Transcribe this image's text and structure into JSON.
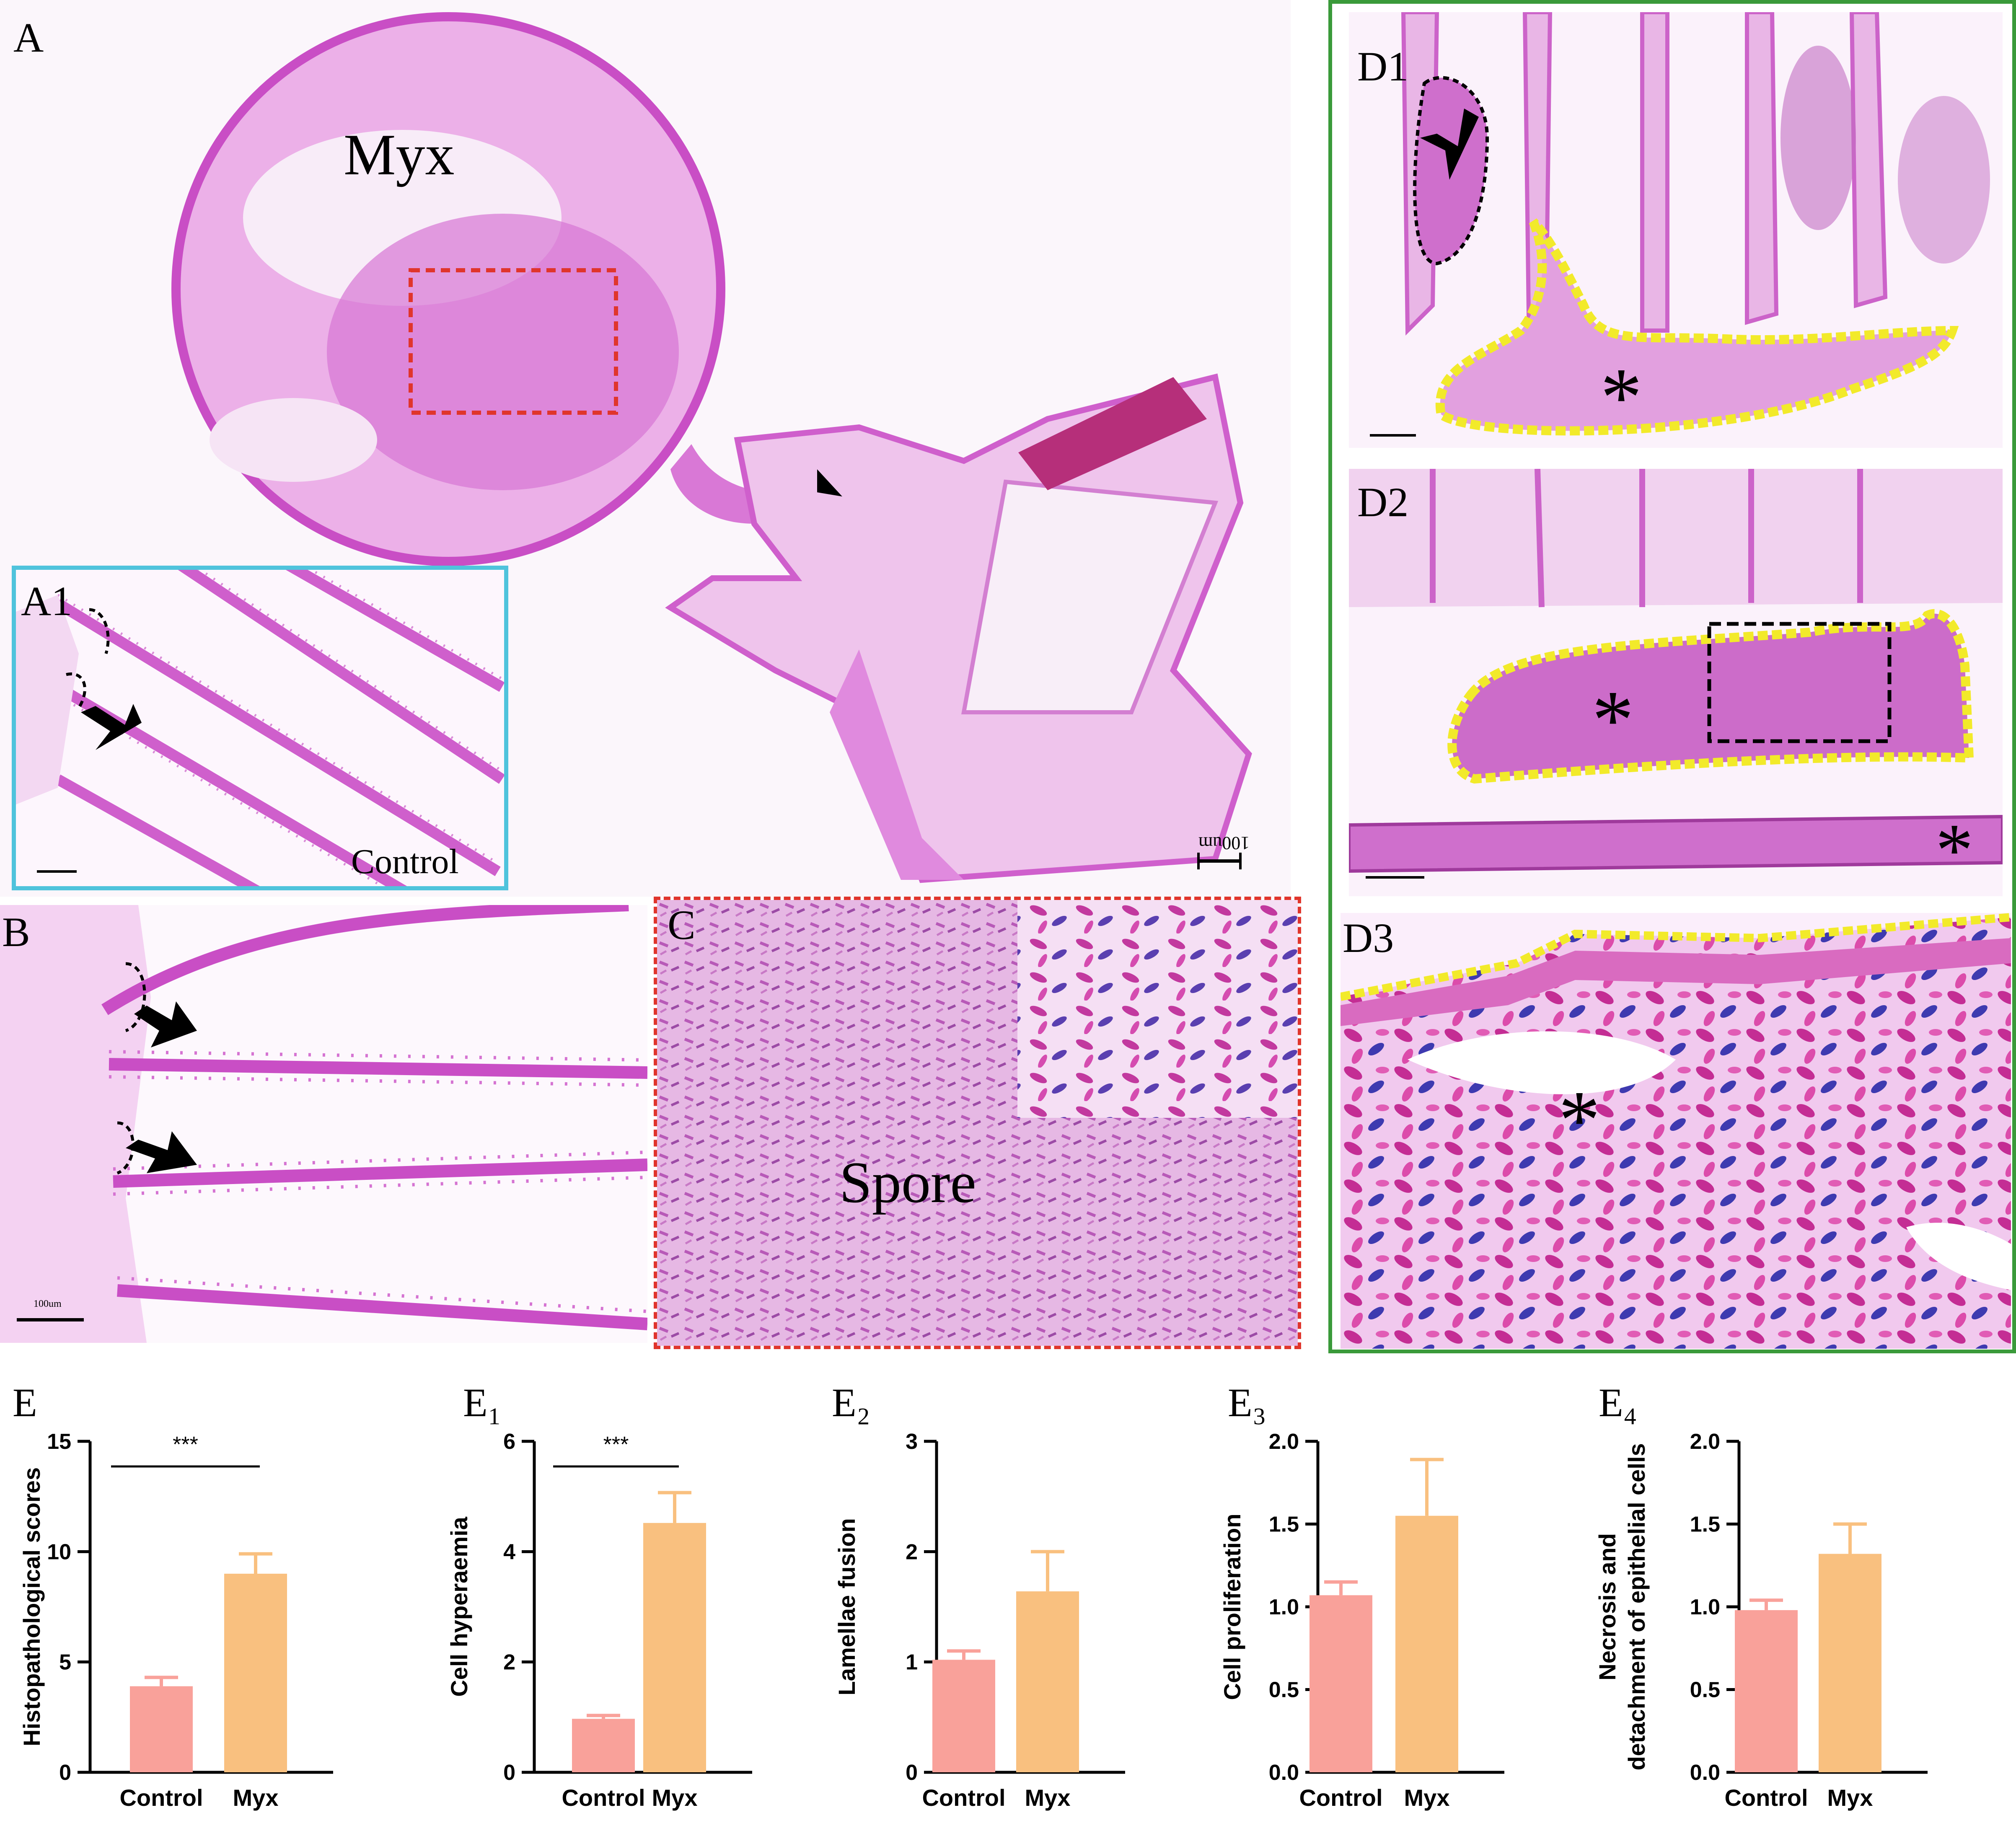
{
  "panels": {
    "A": {
      "label": "A",
      "text_myx": "Myx",
      "scale": "100um"
    },
    "A1": {
      "label": "A1",
      "text_control": "Control"
    },
    "B": {
      "label": "B",
      "scale": "100um"
    },
    "C": {
      "label": "C",
      "text_spore": "Spore"
    },
    "D1": {
      "label": "D1"
    },
    "D2": {
      "label": "D2"
    },
    "D3": {
      "label": "D3"
    }
  },
  "colors": {
    "stain_pink": "#e9a6e6",
    "stain_dark": "#c13fbf",
    "control_bar": "#f9a19a",
    "myx_bar": "#f9c07f",
    "inset_blue": "#4fc3dc",
    "outline_red": "#e0352c",
    "outline_green": "#3a9a3a",
    "outline_yellow": "#f2ea2a"
  },
  "chart_data": [
    {
      "type": "bar",
      "panel": "E",
      "ylabel": "Histopathological scores",
      "categories": [
        "Control",
        "Myx"
      ],
      "values": [
        3.9,
        9.0
      ],
      "errors": [
        0.4,
        0.9
      ],
      "ylim": [
        0,
        15
      ],
      "yticks": [
        0,
        5,
        10,
        15
      ],
      "significance": "***"
    },
    {
      "type": "bar",
      "panel": "E₁",
      "ylabel": "Cell hyperaemia",
      "categories": [
        "Control",
        "Myx"
      ],
      "values": [
        0.97,
        4.52
      ],
      "errors": [
        0.06,
        0.55
      ],
      "ylim": [
        0,
        6
      ],
      "yticks": [
        0,
        2,
        4,
        6
      ],
      "significance": "***"
    },
    {
      "type": "bar",
      "panel": "E₂",
      "ylabel": "Lamellae fusion",
      "categories": [
        "Control",
        "Myx"
      ],
      "values": [
        1.02,
        1.64
      ],
      "errors": [
        0.08,
        0.36
      ],
      "ylim": [
        0,
        3
      ],
      "yticks": [
        0,
        1,
        2,
        3
      ],
      "significance": ""
    },
    {
      "type": "bar",
      "panel": "E₃",
      "ylabel": "Cell proliferation",
      "categories": [
        "Control",
        "Myx"
      ],
      "values": [
        1.07,
        1.55
      ],
      "errors": [
        0.08,
        0.34
      ],
      "ylim": [
        0,
        2.0
      ],
      "yticks": [
        0.0,
        0.5,
        1.0,
        1.5,
        2.0
      ],
      "significance": ""
    },
    {
      "type": "bar",
      "panel": "E₄",
      "ylabel": "Necrosis and detachment of epithelial cells",
      "categories": [
        "Control",
        "Myx"
      ],
      "values": [
        0.98,
        1.32
      ],
      "errors": [
        0.06,
        0.18
      ],
      "ylim": [
        0,
        2.0
      ],
      "yticks": [
        0.0,
        0.5,
        1.0,
        1.5,
        2.0
      ],
      "significance": ""
    }
  ]
}
